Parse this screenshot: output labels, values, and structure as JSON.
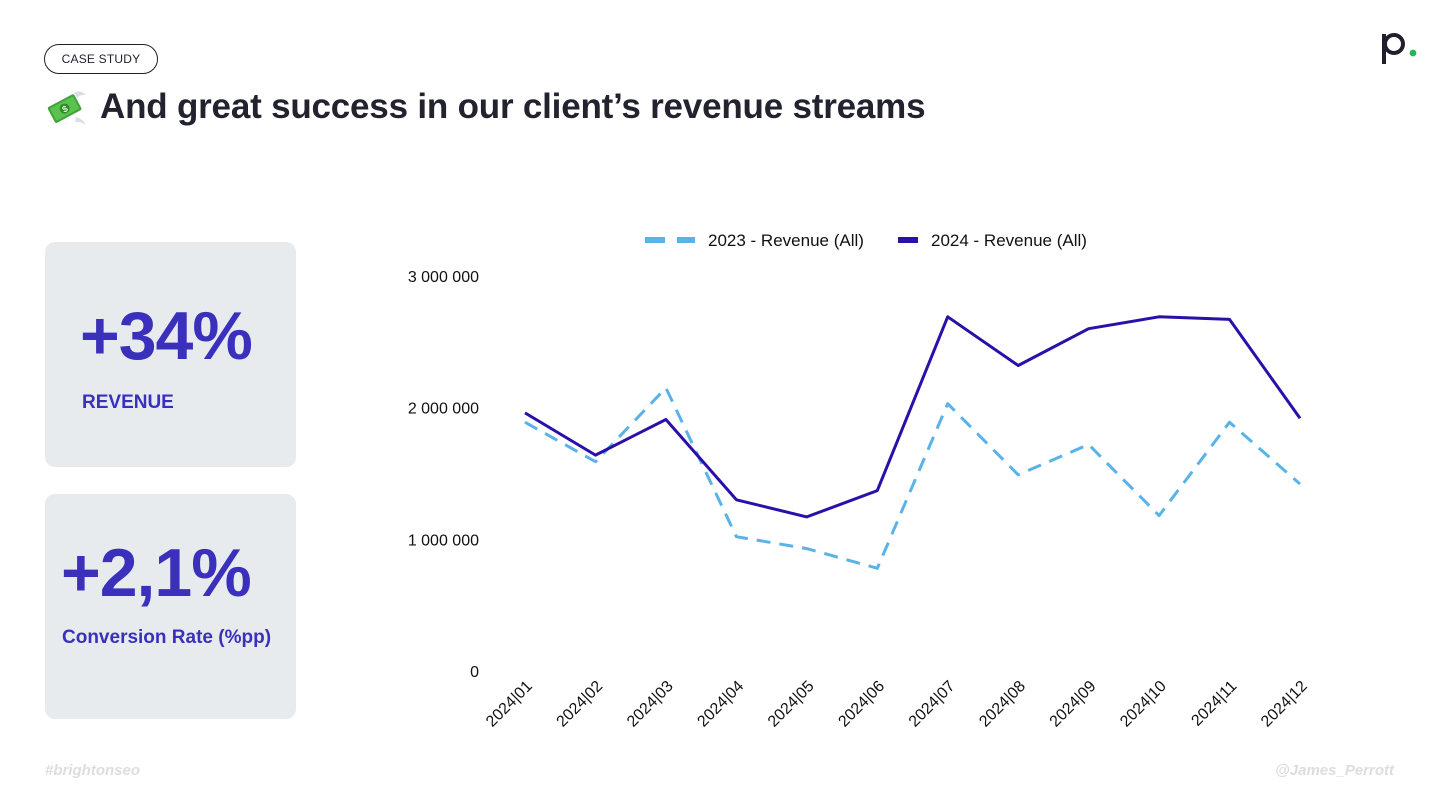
{
  "header": {
    "badge": "CASE STUDY",
    "title": "And great success in our client’s revenue streams",
    "emoji": "💸"
  },
  "kpis": [
    {
      "value": "+34%",
      "label": "REVENUE"
    },
    {
      "value": "+2,1%",
      "label": "Conversion Rate (%pp)"
    }
  ],
  "footer": {
    "left": "#brightonseo",
    "right": "@James_Perrott"
  },
  "colors": {
    "accent": "#3b30bb",
    "series_2023": "#5ab3e6",
    "series_2024": "#2a0fa8",
    "card_bg": "#e7ebee",
    "logo_dot": "#1db954"
  },
  "chart_data": {
    "type": "line",
    "categories": [
      "2024|01",
      "2024|02",
      "2024|03",
      "2024|04",
      "2024|05",
      "2024|06",
      "2024|07",
      "2024|08",
      "2024|09",
      "2024|10",
      "2024|11",
      "2024|12"
    ],
    "series": [
      {
        "name": "2023 - Revenue (All)",
        "style": "dashed",
        "color": "#5ab3e6",
        "values": [
          1890000,
          1590000,
          2150000,
          1020000,
          930000,
          780000,
          2030000,
          1490000,
          1720000,
          1180000,
          1890000,
          1420000
        ]
      },
      {
        "name": "2024 - Revenue (All)",
        "style": "solid",
        "color": "#2a0fa8",
        "values": [
          1960000,
          1640000,
          1910000,
          1300000,
          1170000,
          1370000,
          2690000,
          2320000,
          2600000,
          2690000,
          2670000,
          1920000
        ]
      }
    ],
    "yticks": [
      "3 000 000",
      "2 000 000",
      "1 000 000",
      "0"
    ],
    "ytick_values": [
      3000000,
      2000000,
      1000000,
      0
    ],
    "ylim": [
      0,
      3000000
    ],
    "legend": "top-center",
    "grid": false
  }
}
